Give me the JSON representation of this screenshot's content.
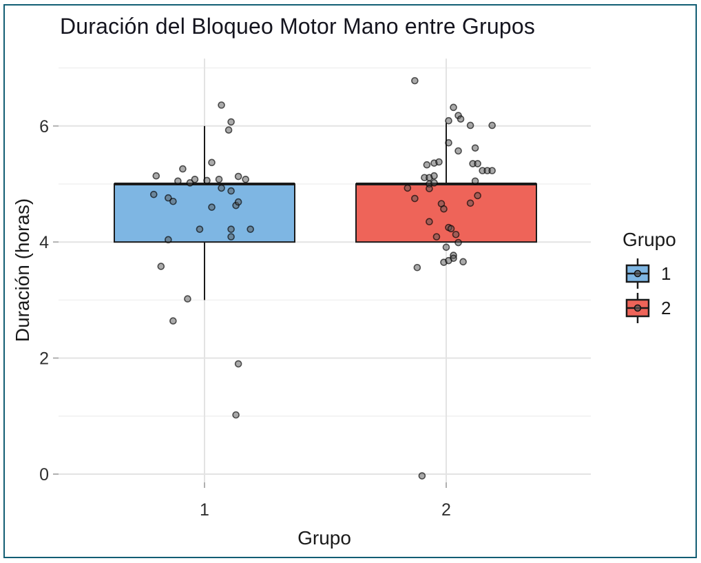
{
  "chart_data": {
    "type": "boxplot",
    "title": "Duración del Bloqueo Motor Mano entre Grupos",
    "xlabel": "Grupo",
    "ylabel": "Duración (horas)",
    "x_categories": [
      "1",
      "2"
    ],
    "y_ticks_major": [
      0,
      2,
      4,
      6
    ],
    "y_gridlines_minor": [
      1,
      3,
      5,
      7
    ],
    "ylim": [
      -0.15,
      7.17
    ],
    "grid": "horizontal-major-minor and vertical at group centers",
    "legend": {
      "title": "Grupo",
      "position": "right",
      "entries": [
        {
          "label": "1",
          "color": "#7eb6e3"
        },
        {
          "label": "2",
          "color": "#ee6459"
        }
      ]
    },
    "groups": [
      {
        "name": "1",
        "x": 1,
        "fill": "#7eb6e3",
        "q1": 4.0,
        "median": 5.0,
        "q3": 5.0,
        "whisker_low": 3.0,
        "whisker_high": 6.0,
        "points": [
          [
            0.07,
            6.36
          ],
          [
            0.11,
            6.07
          ],
          [
            0.1,
            5.93
          ],
          [
            0.03,
            5.37
          ],
          [
            -0.09,
            5.26
          ],
          [
            -0.2,
            5.14
          ],
          [
            -0.11,
            5.05
          ],
          [
            -0.06,
            5.02
          ],
          [
            -0.04,
            5.08
          ],
          [
            0.01,
            5.06
          ],
          [
            0.06,
            5.08
          ],
          [
            0.14,
            5.13
          ],
          [
            0.17,
            5.08
          ],
          [
            0.07,
            4.93
          ],
          [
            0.11,
            4.88
          ],
          [
            -0.21,
            4.82
          ],
          [
            -0.15,
            4.76
          ],
          [
            -0.13,
            4.7
          ],
          [
            0.03,
            4.6
          ],
          [
            0.13,
            4.63
          ],
          [
            0.14,
            4.69
          ],
          [
            -0.02,
            4.22
          ],
          [
            0.11,
            4.22
          ],
          [
            0.19,
            4.22
          ],
          [
            0.11,
            4.09
          ],
          [
            -0.15,
            4.04
          ],
          [
            -0.18,
            3.58
          ],
          [
            -0.07,
            3.02
          ],
          [
            -0.13,
            2.64
          ],
          [
            0.14,
            1.9
          ],
          [
            0.13,
            1.02
          ]
        ]
      },
      {
        "name": "2",
        "x": 2,
        "fill": "#ee6459",
        "q1": 4.0,
        "median": 5.0,
        "q3": 5.0,
        "whisker_low": 4.0,
        "whisker_high": 6.05,
        "points": [
          [
            -0.13,
            6.78
          ],
          [
            0.03,
            6.32
          ],
          [
            0.05,
            6.18
          ],
          [
            0.01,
            6.09
          ],
          [
            0.06,
            6.12
          ],
          [
            0.1,
            6.01
          ],
          [
            0.19,
            6.01
          ],
          [
            0.01,
            5.71
          ],
          [
            0.05,
            5.57
          ],
          [
            0.12,
            5.62
          ],
          [
            -0.08,
            5.33
          ],
          [
            -0.05,
            5.36
          ],
          [
            -0.03,
            5.38
          ],
          [
            0.11,
            5.35
          ],
          [
            0.13,
            5.35
          ],
          [
            0.15,
            5.23
          ],
          [
            0.17,
            5.23
          ],
          [
            0.19,
            5.23
          ],
          [
            -0.09,
            5.11
          ],
          [
            -0.07,
            5.11
          ],
          [
            -0.05,
            5.14
          ],
          [
            -0.07,
            5.0
          ],
          [
            -0.05,
            5.02
          ],
          [
            0.12,
            5.05
          ],
          [
            -0.16,
            4.93
          ],
          [
            -0.07,
            4.92
          ],
          [
            -0.13,
            4.75
          ],
          [
            0.13,
            4.8
          ],
          [
            0.1,
            4.67
          ],
          [
            -0.02,
            4.66
          ],
          [
            -0.01,
            4.57
          ],
          [
            -0.07,
            4.35
          ],
          [
            0.01,
            4.25
          ],
          [
            0.02,
            4.23
          ],
          [
            0.04,
            4.13
          ],
          [
            -0.04,
            4.09
          ],
          [
            0.05,
            3.99
          ],
          [
            0.0,
            3.91
          ],
          [
            0.03,
            3.77
          ],
          [
            0.03,
            3.72
          ],
          [
            -0.01,
            3.65
          ],
          [
            0.01,
            3.68
          ],
          [
            0.07,
            3.66
          ],
          [
            -0.12,
            3.56
          ],
          [
            -0.1,
            -0.03
          ]
        ]
      }
    ],
    "style": {
      "box_border_color": "#1a1a1a",
      "gridline_major_color": "#e3e3e3",
      "gridline_minor_color": "#f1f1f1",
      "tick_color": "#b0b0b0",
      "tick_label_color": "#2f2f2f",
      "point_fill": "rgba(85,85,85,0.5)",
      "point_stroke": "rgba(0,0,0,0.65)",
      "frame_border_color": "#115d73"
    }
  }
}
